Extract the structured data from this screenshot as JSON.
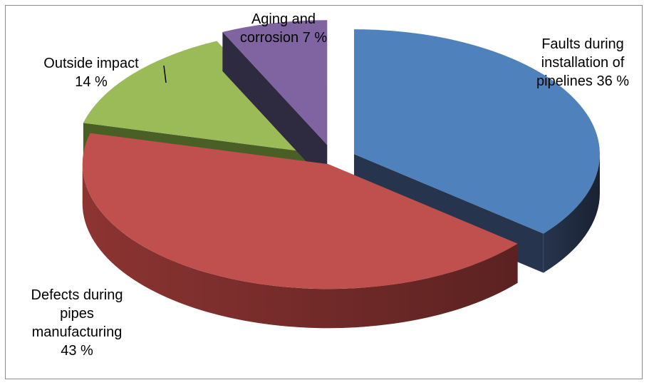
{
  "chart_data": {
    "type": "pie",
    "title": "",
    "slices": [
      {
        "label_lines": [
          "Faults during",
          "installation of",
          "pipelines 36 %"
        ],
        "value": 36,
        "color": "#4F81BD",
        "side_color": "#26344D"
      },
      {
        "label_lines": [
          "Defects during",
          "pipes",
          "manufacturing",
          "43 %"
        ],
        "value": 43,
        "color": "#C0504D",
        "side_color": "#8C3432"
      },
      {
        "label_lines": [
          "Outside impact",
          "14 %"
        ],
        "value": 14,
        "color": "#9BBB59",
        "side_color": "#4A5F26"
      },
      {
        "label_lines": [
          "Aging and",
          "corrosion 7 %"
        ],
        "value": 7,
        "color": "#8064A2",
        "side_color": "#2E2A40"
      }
    ],
    "exploded": true,
    "three_d": true,
    "legend": "none"
  }
}
